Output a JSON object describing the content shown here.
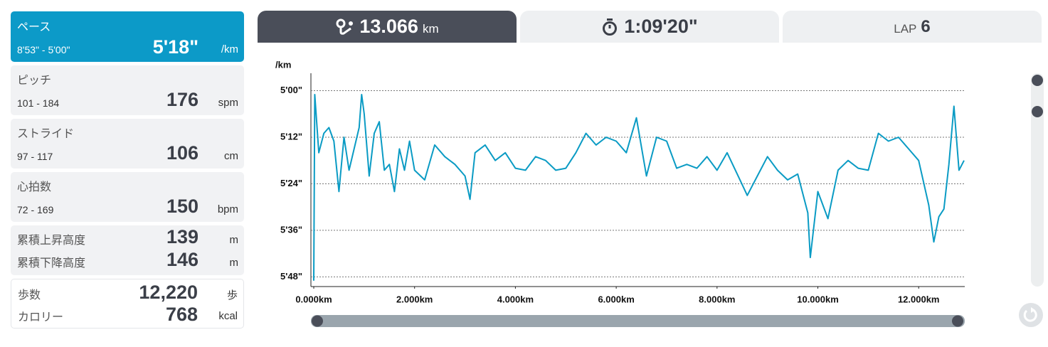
{
  "sidebar": {
    "pace": {
      "label": "ペース",
      "range": "8'53\" - 5'00\"",
      "value": "5'18\"",
      "unit": "/km"
    },
    "pitch": {
      "label": "ピッチ",
      "range": "101 - 184",
      "value": "176",
      "unit": "spm"
    },
    "stride": {
      "label": "ストライド",
      "range": "97 - 117",
      "value": "106",
      "unit": "cm"
    },
    "heart_rate": {
      "label": "心拍数",
      "range": "72 - 169",
      "value": "150",
      "unit": "bpm"
    },
    "elevation": [
      {
        "label": "累積上昇高度",
        "value": "139",
        "unit": "m"
      },
      {
        "label": "累積下降高度",
        "value": "146",
        "unit": "m"
      }
    ],
    "activity": [
      {
        "label": "歩数",
        "value": "12,220",
        "unit": "歩"
      },
      {
        "label": "カロリー",
        "value": "768",
        "unit": "kcal"
      }
    ]
  },
  "tabs": [
    {
      "value": "13.066",
      "unit": "km"
    },
    {
      "value": "1:09'20\""
    },
    {
      "label": "LAP",
      "value": "6"
    }
  ],
  "chart_data": {
    "type": "line",
    "y_label": "/km",
    "color": "#0a9bc4",
    "grid": true,
    "invert_y": true,
    "x": [
      0,
      0.02,
      0.1,
      0.2,
      0.3,
      0.4,
      0.5,
      0.6,
      0.7,
      0.8,
      0.9,
      0.95,
      1.0,
      1.1,
      1.2,
      1.3,
      1.4,
      1.5,
      1.6,
      1.7,
      1.8,
      1.9,
      2.0,
      2.2,
      2.4,
      2.6,
      2.8,
      3.0,
      3.1,
      3.2,
      3.4,
      3.6,
      3.8,
      4.0,
      4.2,
      4.4,
      4.6,
      4.8,
      5.0,
      5.2,
      5.4,
      5.6,
      5.8,
      6.0,
      6.2,
      6.4,
      6.6,
      6.8,
      7.0,
      7.2,
      7.4,
      7.6,
      7.8,
      8.0,
      8.2,
      8.4,
      8.6,
      8.8,
      9.0,
      9.2,
      9.4,
      9.6,
      9.8,
      9.85,
      10.0,
      10.2,
      10.4,
      10.6,
      10.8,
      11.0,
      11.2,
      11.4,
      11.6,
      11.8,
      12.0,
      12.2,
      12.3,
      12.4,
      12.5,
      12.6,
      12.7,
      12.8,
      12.9
    ],
    "values": [
      349,
      301,
      316,
      311,
      309.5,
      313,
      326,
      312,
      320.5,
      315,
      309.5,
      301,
      306,
      322,
      311,
      308,
      320.5,
      319,
      326,
      315,
      320.5,
      313,
      320.5,
      323,
      314,
      317,
      319,
      322,
      328,
      316,
      314,
      318,
      316,
      320,
      320.5,
      317,
      318,
      320.5,
      320,
      316,
      311,
      314,
      312,
      313,
      316,
      307,
      322,
      312,
      313,
      320,
      319,
      320,
      317,
      320.5,
      316,
      321.5,
      327,
      322,
      317,
      320.5,
      323,
      321.5,
      331.5,
      343,
      326,
      333,
      320.5,
      318,
      320,
      320.5,
      311,
      313,
      312,
      315,
      318,
      329.5,
      339,
      332.5,
      330.5,
      319,
      304,
      320.5,
      318
    ],
    "xlim": [
      0,
      12.9
    ],
    "ylim": [
      295.5,
      350.5
    ],
    "xticks": [
      {
        "value": 0,
        "label": "0.000km"
      },
      {
        "value": 2,
        "label": "2.000km"
      },
      {
        "value": 4,
        "label": "4.000km"
      },
      {
        "value": 6,
        "label": "6.000km"
      },
      {
        "value": 8,
        "label": "8.000km"
      },
      {
        "value": 10,
        "label": "10.000km"
      },
      {
        "value": 12,
        "label": "12.000km"
      }
    ],
    "yticks": [
      {
        "value": 300,
        "label": "5'00\""
      },
      {
        "value": 312,
        "label": "5'12\""
      },
      {
        "value": 324,
        "label": "5'24\""
      },
      {
        "value": 336,
        "label": "5'36\""
      },
      {
        "value": 348,
        "label": "5'48\""
      }
    ]
  }
}
